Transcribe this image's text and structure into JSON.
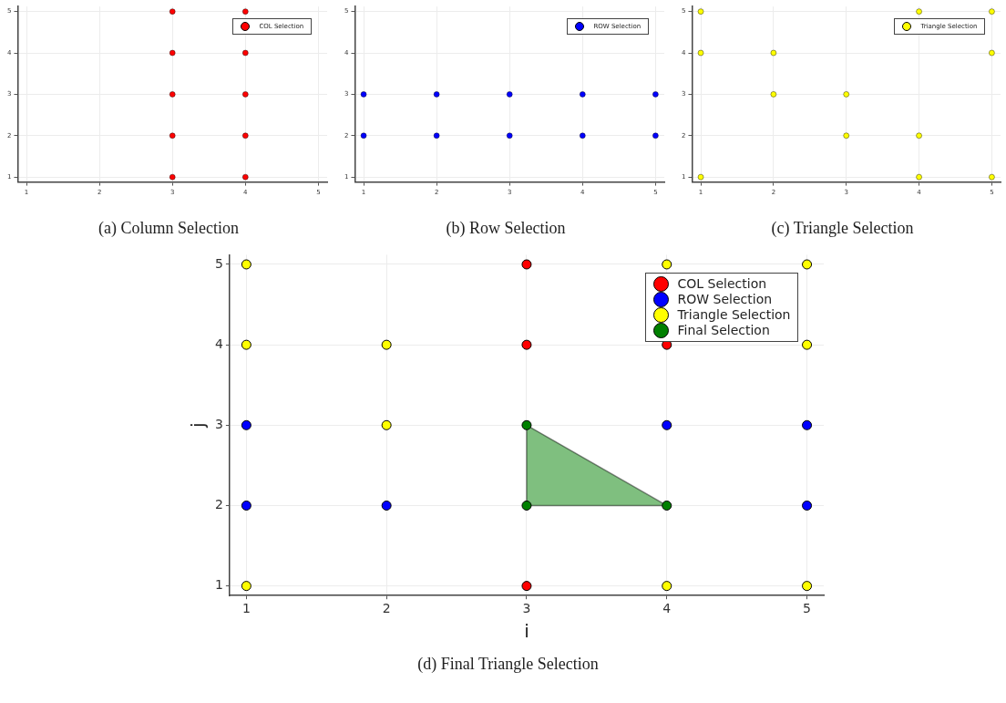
{
  "chart_data": [
    {
      "type": "scatter",
      "title": "(a) Column Selection",
      "xlim": [
        0.88,
        5.12
      ],
      "ylim": [
        0.88,
        5.12
      ],
      "xticks": [
        1,
        2,
        3,
        4,
        5
      ],
      "yticks": [
        1,
        2,
        3,
        4,
        5
      ],
      "grid": true,
      "legend": "top right",
      "marker": "circle",
      "series": [
        {
          "name": "COL Selection",
          "color": "#ff0000",
          "x": [
            3,
            3,
            3,
            3,
            3,
            4,
            4,
            4,
            4,
            4
          ],
          "values": [
            1,
            2,
            3,
            4,
            5,
            1,
            2,
            3,
            4,
            5
          ]
        }
      ]
    },
    {
      "type": "scatter",
      "title": "(b) Row Selection",
      "xlim": [
        0.88,
        5.12
      ],
      "ylim": [
        0.88,
        5.12
      ],
      "xticks": [
        1,
        2,
        3,
        4,
        5
      ],
      "yticks": [
        1,
        2,
        3,
        4,
        5
      ],
      "grid": true,
      "legend": "top right",
      "marker": "circle",
      "series": [
        {
          "name": "ROW Selection",
          "color": "#0000ff",
          "x": [
            1,
            2,
            3,
            4,
            5,
            1,
            2,
            3,
            4,
            5
          ],
          "values": [
            2,
            2,
            2,
            2,
            2,
            3,
            3,
            3,
            3,
            3
          ]
        }
      ]
    },
    {
      "type": "scatter",
      "title": "(c) Triangle Selection",
      "xlim": [
        0.88,
        5.12
      ],
      "ylim": [
        0.88,
        5.12
      ],
      "xticks": [
        1,
        2,
        3,
        4,
        5
      ],
      "yticks": [
        1,
        2,
        3,
        4,
        5
      ],
      "grid": true,
      "legend": "top right",
      "marker": "circle",
      "series": [
        {
          "name": "Triangle Selection",
          "color": "#ffff00",
          "x": [
            1,
            1,
            1,
            2,
            2,
            3,
            3,
            4,
            4,
            4,
            5,
            5,
            5
          ],
          "values": [
            1,
            4,
            5,
            3,
            4,
            2,
            3,
            1,
            2,
            5,
            1,
            4,
            5
          ]
        }
      ]
    },
    {
      "type": "scatter",
      "title": "(d) Final Triangle Selection",
      "xlabel": "i",
      "ylabel": "j",
      "xlim": [
        0.88,
        5.12
      ],
      "ylim": [
        0.88,
        5.12
      ],
      "xticks": [
        1,
        2,
        3,
        4,
        5
      ],
      "yticks": [
        1,
        2,
        3,
        4,
        5
      ],
      "grid": true,
      "legend": "top right",
      "marker": "circle",
      "series": [
        {
          "name": "COL Selection",
          "color": "#ff0000",
          "x": [
            3,
            3,
            3,
            4
          ],
          "values": [
            1,
            4,
            5,
            4
          ]
        },
        {
          "name": "ROW Selection",
          "color": "#0000ff",
          "x": [
            1,
            1,
            2,
            4,
            5,
            5
          ],
          "values": [
            2,
            3,
            2,
            3,
            2,
            3
          ]
        },
        {
          "name": "Triangle Selection",
          "color": "#ffff00",
          "x": [
            1,
            1,
            1,
            2,
            2,
            4,
            4,
            5,
            5,
            5
          ],
          "values": [
            1,
            4,
            5,
            3,
            4,
            1,
            5,
            1,
            4,
            5
          ]
        },
        {
          "name": "Final Selection",
          "type": "area",
          "color": "#008000",
          "x": [
            3,
            3,
            4
          ],
          "values": [
            3,
            2,
            2
          ]
        }
      ]
    }
  ]
}
